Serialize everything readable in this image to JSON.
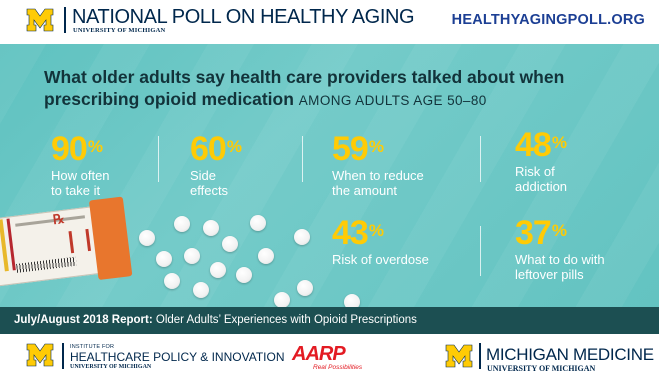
{
  "header": {
    "title": "NATIONAL POLL ON HEALTHY AGING",
    "subtitle": "UNIVERSITY OF MICHIGAN",
    "url": "HEALTHYAGINGPOLL.ORG"
  },
  "headline": {
    "text": "What older adults say health care providers talked about when prescribing opioid medication",
    "qualifier": "AMONG ADULTS AGE 50–80"
  },
  "stats": [
    {
      "value": "90",
      "unit": "%",
      "label_lines": [
        "How often",
        "to take it"
      ]
    },
    {
      "value": "60",
      "unit": "%",
      "label_lines": [
        "Side",
        "effects"
      ]
    },
    {
      "value": "59",
      "unit": "%",
      "label_lines": [
        "When to reduce",
        "the amount"
      ]
    },
    {
      "value": "48",
      "unit": "%",
      "label_lines": [
        "Risk of",
        "addiction"
      ]
    },
    {
      "value": "43",
      "unit": "%",
      "label_lines": [
        "Risk of overdose"
      ]
    },
    {
      "value": "37",
      "unit": "%",
      "label_lines": [
        "What to do with",
        "leftover pills"
      ]
    }
  ],
  "illustration": {
    "rx_symbol": "℞"
  },
  "report": {
    "prefix": "July/August 2018 Report:",
    "title": "Older Adults’ Experiences with Opioid Prescriptions"
  },
  "footer": {
    "ihpi": {
      "small": "INSTITUTE FOR",
      "title": "HEALTHCARE POLICY & INNOVATION",
      "sub": "UNIVERSITY OF MICHIGAN"
    },
    "aarp": {
      "logo": "AARP",
      "tagline": "Real Possibilities"
    },
    "michigan_medicine": {
      "title": "MICHIGAN MEDICINE",
      "sub": "UNIVERSITY OF MICHIGAN"
    }
  },
  "colors": {
    "navy": "#00274c",
    "maize": "#ffcb05",
    "teal": "#6ec8c6",
    "report_bar": "#1c4f52",
    "url_blue": "#1c3f94",
    "aarp_red": "#e31b23"
  }
}
